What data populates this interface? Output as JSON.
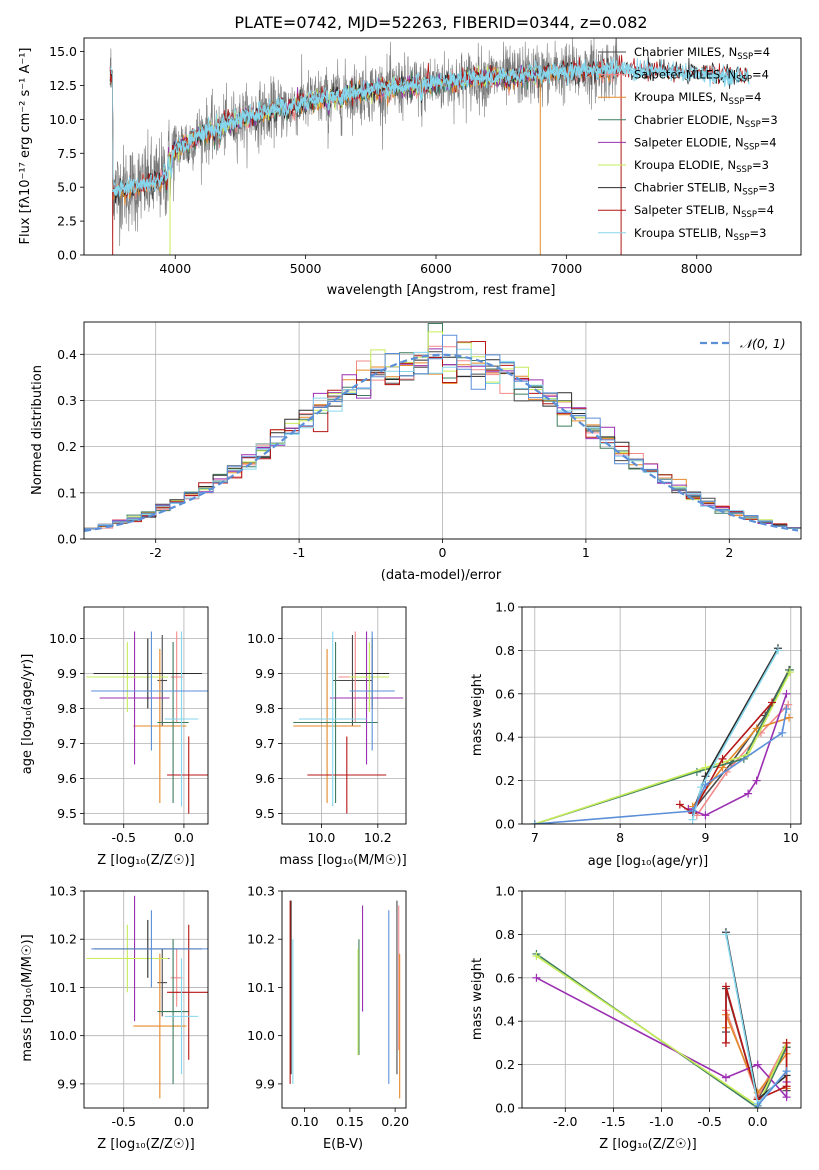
{
  "colors": {
    "Chabrier MILES": "#4a4a4a",
    "Salpeter MILES": "#f28a8a",
    "Kroupa MILES": "#e58a2a",
    "Chabrier ELODIE": "#3d7d5e",
    "Salpeter ELODIE": "#9b2fb2",
    "Kroupa ELODIE": "#c6ec5a",
    "Chabrier STELIB": "#2b2b2b",
    "Salpeter STELIB": "#b51616",
    "Kroupa STELIB": "#86d6ec",
    "data": "#7a7a7a",
    "normal": "#5b8fd8"
  },
  "chart_data": [
    {
      "id": "spectrum",
      "type": "line",
      "title": "PLATE=0742, MJD=52263, FIBERID=0344, z=0.082",
      "xlabel": "wavelength [Angstrom, rest frame]",
      "ylabel": "Flux [fλ10⁻¹⁷ erg cm⁻² s⁻¹ A⁻¹]",
      "xlim": [
        3300,
        8800
      ],
      "ylim": [
        0,
        16
      ],
      "xticks": [
        4000,
        5000,
        6000,
        7000,
        8000
      ],
      "yticks": [
        0.0,
        2.5,
        5.0,
        7.5,
        10.0,
        12.5,
        15.0
      ],
      "legend": "upper right",
      "legend_entries": [
        {
          "label": "Chabrier MILES, N",
          "sub": "SSP",
          "tail": "=4"
        },
        {
          "label": "Salpeter MILES, N",
          "sub": "SSP",
          "tail": "=4"
        },
        {
          "label": "Kroupa MILES, N",
          "sub": "SSP",
          "tail": "=4"
        },
        {
          "label": "Chabrier ELODIE, N",
          "sub": "SSP",
          "tail": "=3"
        },
        {
          "label": "Salpeter ELODIE, N",
          "sub": "SSP",
          "tail": "=4"
        },
        {
          "label": "Kroupa ELODIE, N",
          "sub": "SSP",
          "tail": "=3"
        },
        {
          "label": "Chabrier STELIB, N",
          "sub": "SSP",
          "tail": "=3"
        },
        {
          "label": "Salpeter STELIB, N",
          "sub": "SSP",
          "tail": "=4"
        },
        {
          "label": "Kroupa STELIB, N",
          "sub": "SSP",
          "tail": "=3"
        }
      ],
      "continuum": [
        [
          3520,
          4.8
        ],
        [
          3700,
          5.0
        ],
        [
          3900,
          5.6
        ],
        [
          3960,
          7.2
        ],
        [
          4000,
          7.8
        ],
        [
          4200,
          9.0
        ],
        [
          4500,
          10.0
        ],
        [
          4800,
          10.8
        ],
        [
          5100,
          11.5
        ],
        [
          5400,
          12.0
        ],
        [
          5700,
          12.3
        ],
        [
          6000,
          12.6
        ],
        [
          6300,
          13.0
        ],
        [
          6600,
          13.2
        ],
        [
          7000,
          13.5
        ],
        [
          7400,
          13.7
        ],
        [
          7800,
          13.4
        ],
        [
          8200,
          13.2
        ],
        [
          8400,
          13.0
        ]
      ],
      "model_range": [
        3500,
        8400
      ],
      "data_range": [
        3500,
        7400
      ]
    },
    {
      "id": "residuals",
      "type": "histogram",
      "xlabel": "(data-model)/error",
      "ylabel": "Normed distribution",
      "xlim": [
        -2.5,
        2.5
      ],
      "ylim": [
        0,
        0.47
      ],
      "xticks": [
        -2,
        -1,
        0,
        1,
        2
      ],
      "yticks": [
        0.0,
        0.1,
        0.2,
        0.3,
        0.4
      ],
      "legend_label": "𝒩(0, 1)",
      "legend": "upper right",
      "bin_width": 0.1,
      "bin_start": -2.5
    },
    {
      "id": "age-vs-Z",
      "type": "errorbar",
      "xlabel": "Z [log₁₀(Z/Z☉)]",
      "ylabel": "age  [log₁₀(age/yr)]",
      "xlim": [
        -0.83,
        0.2
      ],
      "ylim": [
        9.47,
        10.09
      ],
      "xticks": [
        -0.5,
        0.0
      ],
      "yticks": [
        9.5,
        9.6,
        9.7,
        9.8,
        9.9,
        10.0
      ],
      "points": [
        {
          "model": "Chabrier MILES",
          "x": -0.18,
          "xerr": 0.04,
          "y": 9.88,
          "yerr": 0.13
        },
        {
          "model": "Salpeter MILES",
          "x": -0.06,
          "xerr": 0.05,
          "y": 9.89,
          "yerr": 0.13
        },
        {
          "model": "Kroupa MILES",
          "x": -0.2,
          "xerr": 0.22,
          "y": 9.75,
          "yerr": 0.22
        },
        {
          "model": "Chabrier ELODIE",
          "x": -0.09,
          "xerr": 0.13,
          "y": 9.76,
          "yerr": 0.23
        },
        {
          "model": "Salpeter ELODIE",
          "x": -0.41,
          "xerr": 0.29,
          "y": 9.83,
          "yerr": 0.19
        },
        {
          "model": "Kroupa ELODIE",
          "x": -0.47,
          "xerr": 0.34,
          "y": 9.89,
          "yerr": 0.1
        },
        {
          "model": "Chabrier STELIB",
          "x": -0.3,
          "xerr": 0.45,
          "y": 9.9,
          "yerr": 0.1
        },
        {
          "model": "Salpeter STELIB",
          "x": 0.04,
          "xerr": 0.18,
          "y": 9.61,
          "yerr": 0.11
        },
        {
          "model": "Kroupa STELIB",
          "x": -0.02,
          "xerr": 0.14,
          "y": 9.77,
          "yerr": 0.25
        },
        {
          "model": "normal",
          "x": -0.27,
          "xerr": 0.5,
          "y": 9.85,
          "yerr": 0.17
        }
      ]
    },
    {
      "id": "age-vs-mass",
      "type": "errorbar",
      "xlabel": "mass [log₁₀(M/M☉)]",
      "ylabel": "",
      "xlim": [
        9.86,
        10.3
      ],
      "ylim": [
        9.47,
        10.09
      ],
      "xticks": [
        10.0,
        10.2
      ],
      "yticks": [
        9.5,
        9.6,
        9.7,
        9.8,
        9.9,
        10.0
      ],
      "points": [
        {
          "model": "Chabrier MILES",
          "x": 10.11,
          "xerr": 0.07,
          "y": 9.88,
          "yerr": 0.13
        },
        {
          "model": "Salpeter MILES",
          "x": 10.12,
          "xerr": 0.06,
          "y": 9.89,
          "yerr": 0.13
        },
        {
          "model": "Kroupa MILES",
          "x": 10.02,
          "xerr": 0.12,
          "y": 9.75,
          "yerr": 0.22
        },
        {
          "model": "Chabrier ELODIE",
          "x": 10.05,
          "xerr": 0.15,
          "y": 9.76,
          "yerr": 0.23
        },
        {
          "model": "Salpeter ELODIE",
          "x": 10.16,
          "xerr": 0.13,
          "y": 9.83,
          "yerr": 0.19
        },
        {
          "model": "Kroupa ELODIE",
          "x": 10.17,
          "xerr": 0.07,
          "y": 9.89,
          "yerr": 0.1
        },
        {
          "model": "Chabrier STELIB",
          "x": 10.18,
          "xerr": 0.06,
          "y": 9.9,
          "yerr": 0.1
        },
        {
          "model": "Salpeter STELIB",
          "x": 10.09,
          "xerr": 0.14,
          "y": 9.61,
          "yerr": 0.11
        },
        {
          "model": "Kroupa STELIB",
          "x": 10.04,
          "xerr": 0.12,
          "y": 9.77,
          "yerr": 0.25
        },
        {
          "model": "normal",
          "x": 10.18,
          "xerr": 0.08,
          "y": 9.85,
          "yerr": 0.17
        }
      ]
    },
    {
      "id": "weight-vs-age",
      "type": "line",
      "xlabel": "age  [log₁₀(age/yr)]",
      "ylabel": "mass weight",
      "xlim": [
        6.85,
        10.12
      ],
      "ylim": [
        0,
        1
      ],
      "xticks": [
        7,
        8,
        9,
        10
      ],
      "yticks": [
        0.0,
        0.2,
        0.4,
        0.6,
        0.8,
        1.0
      ],
      "series": [
        {
          "model": "Chabrier MILES",
          "x": [
            8.85,
            9.3,
            9.7,
            9.98
          ],
          "y": [
            0.06,
            0.28,
            0.5,
            0.71
          ]
        },
        {
          "model": "Salpeter MILES",
          "x": [
            8.9,
            9.25,
            9.65,
            9.97
          ],
          "y": [
            0.04,
            0.24,
            0.42,
            0.55
          ]
        },
        {
          "model": "Kroupa MILES",
          "x": [
            8.85,
            9.2,
            9.6,
            9.98
          ],
          "y": [
            0.08,
            0.26,
            0.44,
            0.49
          ]
        },
        {
          "model": "Chabrier ELODIE",
          "x": [
            7.0,
            8.9,
            9.45,
            9.99
          ],
          "y": [
            0.0,
            0.24,
            0.3,
            0.71
          ]
        },
        {
          "model": "Salpeter ELODIE",
          "x": [
            8.8,
            9.0,
            9.5,
            9.6,
            9.95
          ],
          "y": [
            0.07,
            0.04,
            0.14,
            0.2,
            0.6
          ]
        },
        {
          "model": "Kroupa ELODIE",
          "x": [
            7.0,
            9.0,
            9.5,
            9.99
          ],
          "y": [
            0.0,
            0.26,
            0.32,
            0.7
          ]
        },
        {
          "model": "Chabrier STELIB",
          "x": [
            8.85,
            9.0,
            9.85
          ],
          "y": [
            0.05,
            0.22,
            0.81
          ]
        },
        {
          "model": "Salpeter STELIB",
          "x": [
            8.7,
            8.85,
            9.2,
            9.78
          ],
          "y": [
            0.09,
            0.05,
            0.3,
            0.56
          ]
        },
        {
          "model": "Kroupa STELIB",
          "x": [
            8.85,
            8.95,
            9.85
          ],
          "y": [
            0.02,
            0.17,
            0.8
          ]
        },
        {
          "model": "normal",
          "x": [
            7.0,
            8.85,
            9.0,
            9.9,
            9.95
          ],
          "y": [
            0.0,
            0.06,
            0.18,
            0.42,
            0.53
          ]
        }
      ]
    },
    {
      "id": "mass-vs-Z",
      "type": "errorbar",
      "xlabel": "Z [log₁₀(Z/Z☉)]",
      "ylabel": "mass [log₁₀(M/M☉)]",
      "xlim": [
        -0.83,
        0.2
      ],
      "ylim": [
        9.85,
        10.3
      ],
      "xticks": [
        -0.5,
        0.0
      ],
      "yticks": [
        9.9,
        10.0,
        10.1,
        10.2,
        10.3
      ],
      "points": [
        {
          "model": "Chabrier MILES",
          "x": -0.18,
          "xerr": 0.04,
          "y": 10.11,
          "yerr": 0.07
        },
        {
          "model": "Salpeter MILES",
          "x": -0.06,
          "xerr": 0.05,
          "y": 10.12,
          "yerr": 0.06
        },
        {
          "model": "Kroupa MILES",
          "x": -0.2,
          "xerr": 0.22,
          "y": 10.02,
          "yerr": 0.15
        },
        {
          "model": "Chabrier ELODIE",
          "x": -0.09,
          "xerr": 0.13,
          "y": 10.05,
          "yerr": 0.15
        },
        {
          "model": "Salpeter ELODIE",
          "x": -0.41,
          "xerr": 0.29,
          "y": 10.16,
          "yerr": 0.13
        },
        {
          "model": "Kroupa ELODIE",
          "x": -0.47,
          "xerr": 0.34,
          "y": 10.16,
          "yerr": 0.07
        },
        {
          "model": "Chabrier STELIB",
          "x": -0.3,
          "xerr": 0.45,
          "y": 10.18,
          "yerr": 0.06
        },
        {
          "model": "Salpeter STELIB",
          "x": 0.04,
          "xerr": 0.18,
          "y": 10.09,
          "yerr": 0.14
        },
        {
          "model": "Kroupa STELIB",
          "x": -0.02,
          "xerr": 0.14,
          "y": 10.04,
          "yerr": 0.12
        },
        {
          "model": "normal",
          "x": -0.27,
          "xerr": 0.5,
          "y": 10.18,
          "yerr": 0.08
        }
      ]
    },
    {
      "id": "mass-vs-ebv",
      "type": "errorbar",
      "xlabel": "E(B-V)",
      "ylabel": "",
      "xlim": [
        0.075,
        0.212
      ],
      "ylim": [
        9.85,
        10.3
      ],
      "xticks": [
        0.1,
        0.15,
        0.2
      ],
      "xticklabels": [
        "0.10",
        "0.15",
        "0.20"
      ],
      "yticks": [
        9.9,
        10.0,
        10.1,
        10.2,
        10.3
      ],
      "points": [
        {
          "model": "Chabrier MILES",
          "x": 0.202,
          "y": 10.1,
          "yerr": 0.18
        },
        {
          "model": "Salpeter MILES",
          "x": 0.204,
          "y": 10.12,
          "yerr": 0.15
        },
        {
          "model": "Kroupa MILES",
          "x": 0.205,
          "y": 10.02,
          "yerr": 0.15
        },
        {
          "model": "Chabrier ELODIE",
          "x": 0.16,
          "y": 10.08,
          "yerr": 0.12
        },
        {
          "model": "Salpeter ELODIE",
          "x": 0.164,
          "y": 10.16,
          "yerr": 0.11
        },
        {
          "model": "Kroupa ELODIE",
          "x": 0.159,
          "y": 10.07,
          "yerr": 0.11
        },
        {
          "model": "Chabrier STELIB",
          "x": 0.085,
          "y": 10.1,
          "yerr": 0.18
        },
        {
          "model": "Salpeter STELIB",
          "x": 0.084,
          "y": 10.09,
          "yerr": 0.19
        },
        {
          "model": "Kroupa STELIB",
          "x": 0.087,
          "y": 10.05,
          "yerr": 0.15
        },
        {
          "model": "normal",
          "x": 0.193,
          "y": 10.08,
          "yerr": 0.18
        }
      ]
    },
    {
      "id": "weight-vs-Z",
      "type": "line",
      "xlabel": "Z [log₁₀(Z/Z☉)]",
      "ylabel": "mass weight",
      "xlim": [
        -2.45,
        0.45
      ],
      "ylim": [
        0,
        1
      ],
      "xticks": [
        -2.0,
        -1.5,
        -1.0,
        -0.5,
        0.0
      ],
      "yticks": [
        0.0,
        0.2,
        0.4,
        0.6,
        0.8,
        1.0
      ],
      "series": [
        {
          "model": "Chabrier MILES",
          "x": [
            -0.33,
            -0.33,
            0.0,
            0.3,
            0.3
          ],
          "y": [
            0.35,
            0.55,
            0.04,
            0.28,
            0.08
          ]
        },
        {
          "model": "Salpeter MILES",
          "x": [
            -0.33,
            -0.33,
            0.0,
            0.3
          ],
          "y": [
            0.3,
            0.45,
            0.05,
            0.3
          ]
        },
        {
          "model": "Kroupa MILES",
          "x": [
            -0.33,
            -0.33,
            0.0,
            0.3,
            0.3
          ],
          "y": [
            0.37,
            0.43,
            0.07,
            0.25,
            0.09
          ]
        },
        {
          "model": "Chabrier ELODIE",
          "x": [
            -2.3,
            0.0,
            0.3
          ],
          "y": [
            0.71,
            0.0,
            0.28
          ]
        },
        {
          "model": "Salpeter ELODIE",
          "x": [
            -2.3,
            -0.33,
            0.0,
            0.3,
            0.3
          ],
          "y": [
            0.6,
            0.14,
            0.2,
            0.05,
            0.12
          ]
        },
        {
          "model": "Kroupa ELODIE",
          "x": [
            -2.3,
            0.0,
            0.3
          ],
          "y": [
            0.7,
            0.01,
            0.3
          ]
        },
        {
          "model": "Chabrier STELIB",
          "x": [
            -0.33,
            0.0,
            0.3
          ],
          "y": [
            0.81,
            0.04,
            0.15
          ]
        },
        {
          "model": "Salpeter STELIB",
          "x": [
            -0.33,
            -0.33,
            0.0,
            0.3,
            0.3
          ],
          "y": [
            0.3,
            0.56,
            0.04,
            0.1,
            0.3
          ]
        },
        {
          "model": "Kroupa STELIB",
          "x": [
            -0.33,
            0.0,
            0.3
          ],
          "y": [
            0.8,
            0.02,
            0.17
          ]
        },
        {
          "model": "normal",
          "x": [
            0.0,
            0.3
          ],
          "y": [
            0.01,
            0.17
          ]
        }
      ]
    }
  ]
}
